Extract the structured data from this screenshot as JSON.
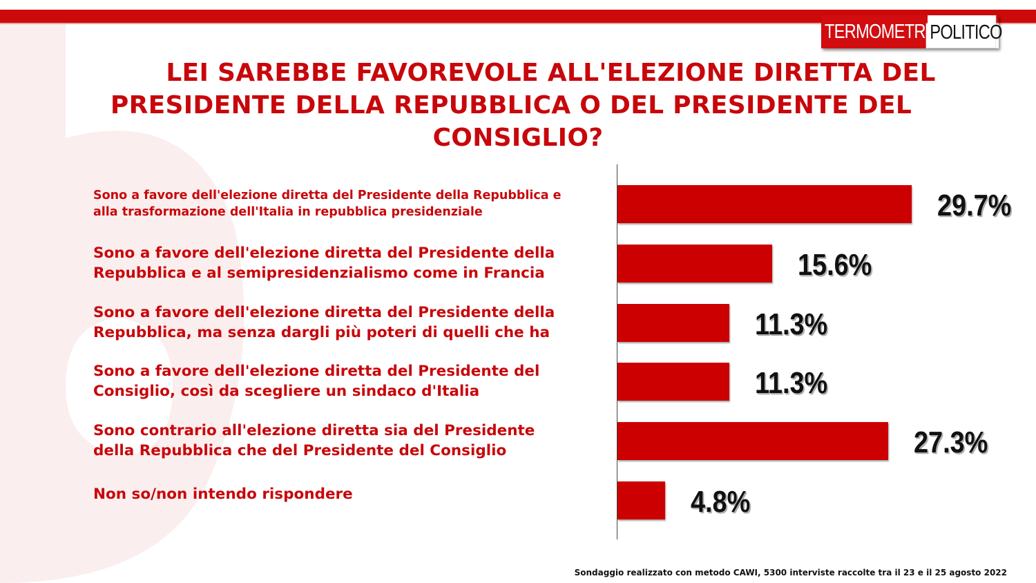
{
  "logo": {
    "part1": "TERMOMETRO",
    "part2": "POLITICO"
  },
  "title": {
    "line1": "LEI SAREBBE FAVOREVOLE ALL'ELEZIONE DIRETTA DEL",
    "line2": "PRESIDENTE DELLA REPUBBLICA O DEL PRESIDENTE DEL",
    "line3": "CONSIGLIO?"
  },
  "colors": {
    "accent": "#cc0000",
    "title": "#c8070b",
    "value_text": "#111111"
  },
  "chart_data": {
    "type": "bar",
    "orientation": "horizontal",
    "categories": [
      "Sono a favore dell'elezione diretta del Presidente della Repubblica e alla trasformazione dell'Italia in repubblica presidenziale",
      "Sono a favore dell'elezione diretta del Presidente della Repubblica e al semipresidenzialismo come in Francia",
      "Sono a favore dell'elezione diretta  del Presidente della Repubblica, ma senza dargli più poteri di quelli che ha",
      "Sono a favore dell'elezione diretta del Presidente del Consiglio, così da scegliere un sindaco d'Italia",
      "Sono contrario all'elezione diretta sia del Presidente della Repubblica che del Presidente del Consiglio",
      "Non so/non intendo rispondere"
    ],
    "category_lines": [
      [
        "Sono a favore dell'elezione diretta del Presidente della Repubblica e",
        "alla trasformazione dell'Italia in repubblica presidenziale"
      ],
      [
        "Sono a favore dell'elezione diretta del Presidente della",
        "Repubblica e al semipresidenzialismo come in Francia"
      ],
      [
        "Sono a favore dell'elezione diretta  del Presidente della",
        "Repubblica, ma senza dargli più poteri di quelli che ha"
      ],
      [
        "Sono a favore dell'elezione diretta del Presidente del",
        "Consiglio, così da scegliere un sindaco d'Italia"
      ],
      [
        "Sono contrario all'elezione diretta sia del Presidente",
        "della Repubblica che del Presidente del Consiglio"
      ],
      [
        "Non so/non intendo rispondere"
      ]
    ],
    "values": [
      29.7,
      15.6,
      11.3,
      11.3,
      27.3,
      4.8
    ],
    "value_labels": [
      "29.7%",
      "15.6%",
      "11.3%",
      "11.3%",
      "27.3%",
      "4.8%"
    ],
    "unit": "%",
    "grid": false,
    "legend": "none"
  },
  "footnote": "Sondaggio realizzato con metodo CAWI, 5300 interviste raccolte tra il 23 e il 25 agosto 2022"
}
